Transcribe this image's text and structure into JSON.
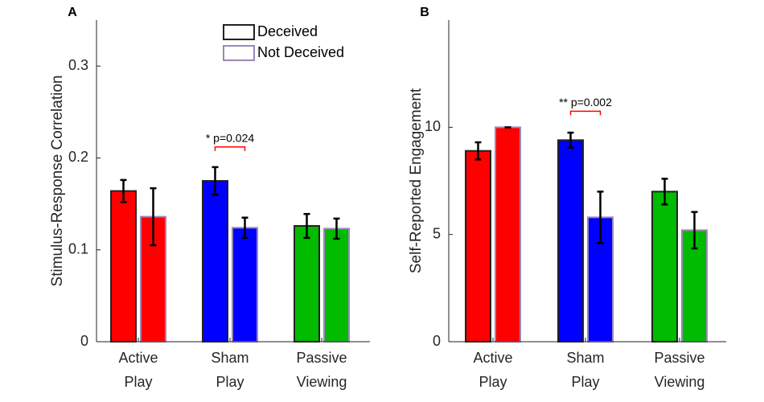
{
  "chart_data": [
    {
      "type": "bar",
      "panel_label": "A",
      "categories": [
        [
          "Active",
          "Play"
        ],
        [
          "Sham",
          "Play"
        ],
        [
          "Passive",
          "Viewing"
        ]
      ],
      "ylabel": "Stimulus-Response Correlation",
      "ylim": [
        0,
        0.35
      ],
      "yticks": [
        "0",
        "0.1",
        "0.2",
        "0.3"
      ],
      "ytick_values": [
        0,
        0.1,
        0.2,
        0.3
      ],
      "series": [
        {
          "name": "Deceived",
          "values": [
            0.164,
            0.175,
            0.126
          ],
          "errors": [
            0.012,
            0.015,
            0.013
          ]
        },
        {
          "name": "Not Deceived",
          "values": [
            0.136,
            0.124,
            0.123
          ],
          "errors": [
            0.031,
            0.011,
            0.011
          ]
        }
      ],
      "bar_colors": [
        "#ff0000",
        "#0000ff",
        "#00bb00"
      ],
      "edge_colors": [
        "#222222",
        "#9b87b8"
      ],
      "annotation": {
        "text": "* p=0.024",
        "category_index": 1,
        "y": 0.212
      },
      "legend": "top-right",
      "grid": false
    },
    {
      "type": "bar",
      "panel_label": "B",
      "categories": [
        [
          "Active",
          "Play"
        ],
        [
          "Sham",
          "Play"
        ],
        [
          "Passive",
          "Viewing"
        ]
      ],
      "ylabel": "Self-Reported Engagement",
      "ylim": [
        0,
        15
      ],
      "yticks": [
        "0",
        "5",
        "10"
      ],
      "ytick_values": [
        0,
        5,
        10
      ],
      "series": [
        {
          "name": "Deceived",
          "values": [
            8.9,
            9.4,
            7.0
          ],
          "errors": [
            0.4,
            0.35,
            0.6
          ]
        },
        {
          "name": "Not Deceived",
          "values": [
            10.0,
            5.8,
            5.2
          ],
          "errors": [
            0.0,
            1.2,
            0.85
          ]
        }
      ],
      "bar_colors": [
        "#ff0000",
        "#0000ff",
        "#00bb00"
      ],
      "edge_colors": [
        "#222222",
        "#9b87b8"
      ],
      "annotation": {
        "text": "** p=0.002",
        "category_index": 1,
        "y": 10.75
      },
      "grid": false
    }
  ]
}
